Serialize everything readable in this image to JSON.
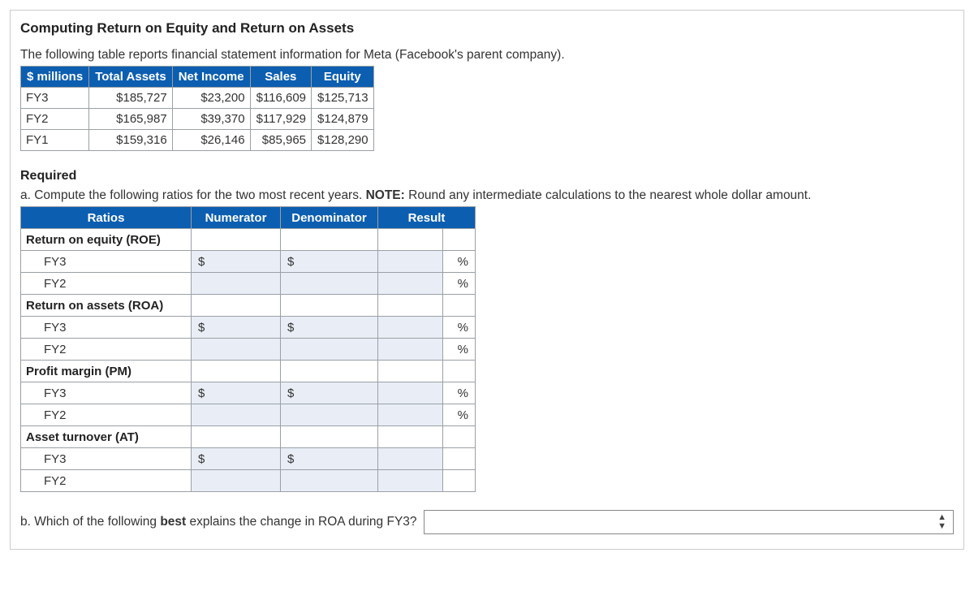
{
  "title": "Computing Return on Equity and Return on Assets",
  "intro": "The following table reports financial statement information for Meta (Facebook's parent company).",
  "data_table": {
    "headers": [
      "$ millions",
      "Total Assets",
      "Net Income",
      "Sales",
      "Equity"
    ],
    "rows": [
      {
        "year": "FY3",
        "total_assets": "$185,727",
        "net_income": "$23,200",
        "sales": "$116,609",
        "equity": "$125,713"
      },
      {
        "year": "FY2",
        "total_assets": "$165,987",
        "net_income": "$39,370",
        "sales": "$117,929",
        "equity": "$124,879"
      },
      {
        "year": "FY1",
        "total_assets": "$159,316",
        "net_income": "$26,146",
        "sales": "$85,965",
        "equity": "$128,290"
      }
    ]
  },
  "required_heading": "Required",
  "question_a_prefix": "a. Compute the following ratios for the two most recent years. ",
  "question_a_note_label": "NOTE:",
  "question_a_note_text": " Round any intermediate calculations to the nearest whole dollar amount.",
  "ratios_table": {
    "headers": [
      "Ratios",
      "Numerator",
      "Denominator",
      "Result"
    ],
    "col_widths": {
      "ratios": 210,
      "numerator": 110,
      "denominator": 120,
      "result_num": 80,
      "result_unit": 40
    },
    "sections": [
      {
        "label": "Return on equity (ROE)",
        "rows": [
          {
            "year": "FY3",
            "num_prefix": "$",
            "den_prefix": "$",
            "unit": "%"
          },
          {
            "year": "FY2",
            "num_prefix": "",
            "den_prefix": "",
            "unit": "%"
          }
        ]
      },
      {
        "label": "Return on assets (ROA)",
        "rows": [
          {
            "year": "FY3",
            "num_prefix": "$",
            "den_prefix": "$",
            "unit": "%"
          },
          {
            "year": "FY2",
            "num_prefix": "",
            "den_prefix": "",
            "unit": "%"
          }
        ]
      },
      {
        "label": "Profit margin (PM)",
        "rows": [
          {
            "year": "FY3",
            "num_prefix": "$",
            "den_prefix": "$",
            "unit": "%"
          },
          {
            "year": "FY2",
            "num_prefix": "",
            "den_prefix": "",
            "unit": "%"
          }
        ]
      },
      {
        "label": "Asset turnover (AT)",
        "rows": [
          {
            "year": "FY3",
            "num_prefix": "$",
            "den_prefix": "$",
            "unit": ""
          },
          {
            "year": "FY2",
            "num_prefix": "",
            "den_prefix": "",
            "unit": ""
          }
        ]
      }
    ]
  },
  "question_b_prefix": "b. Which of the following ",
  "question_b_bold": "best",
  "question_b_suffix": " explains the change in ROA during FY3?",
  "select_value": "",
  "colors": {
    "header_bg": "#0c5eb0",
    "header_fg": "#ffffff",
    "input_bg": "#e9eef6",
    "border": "#9aa0a6"
  }
}
